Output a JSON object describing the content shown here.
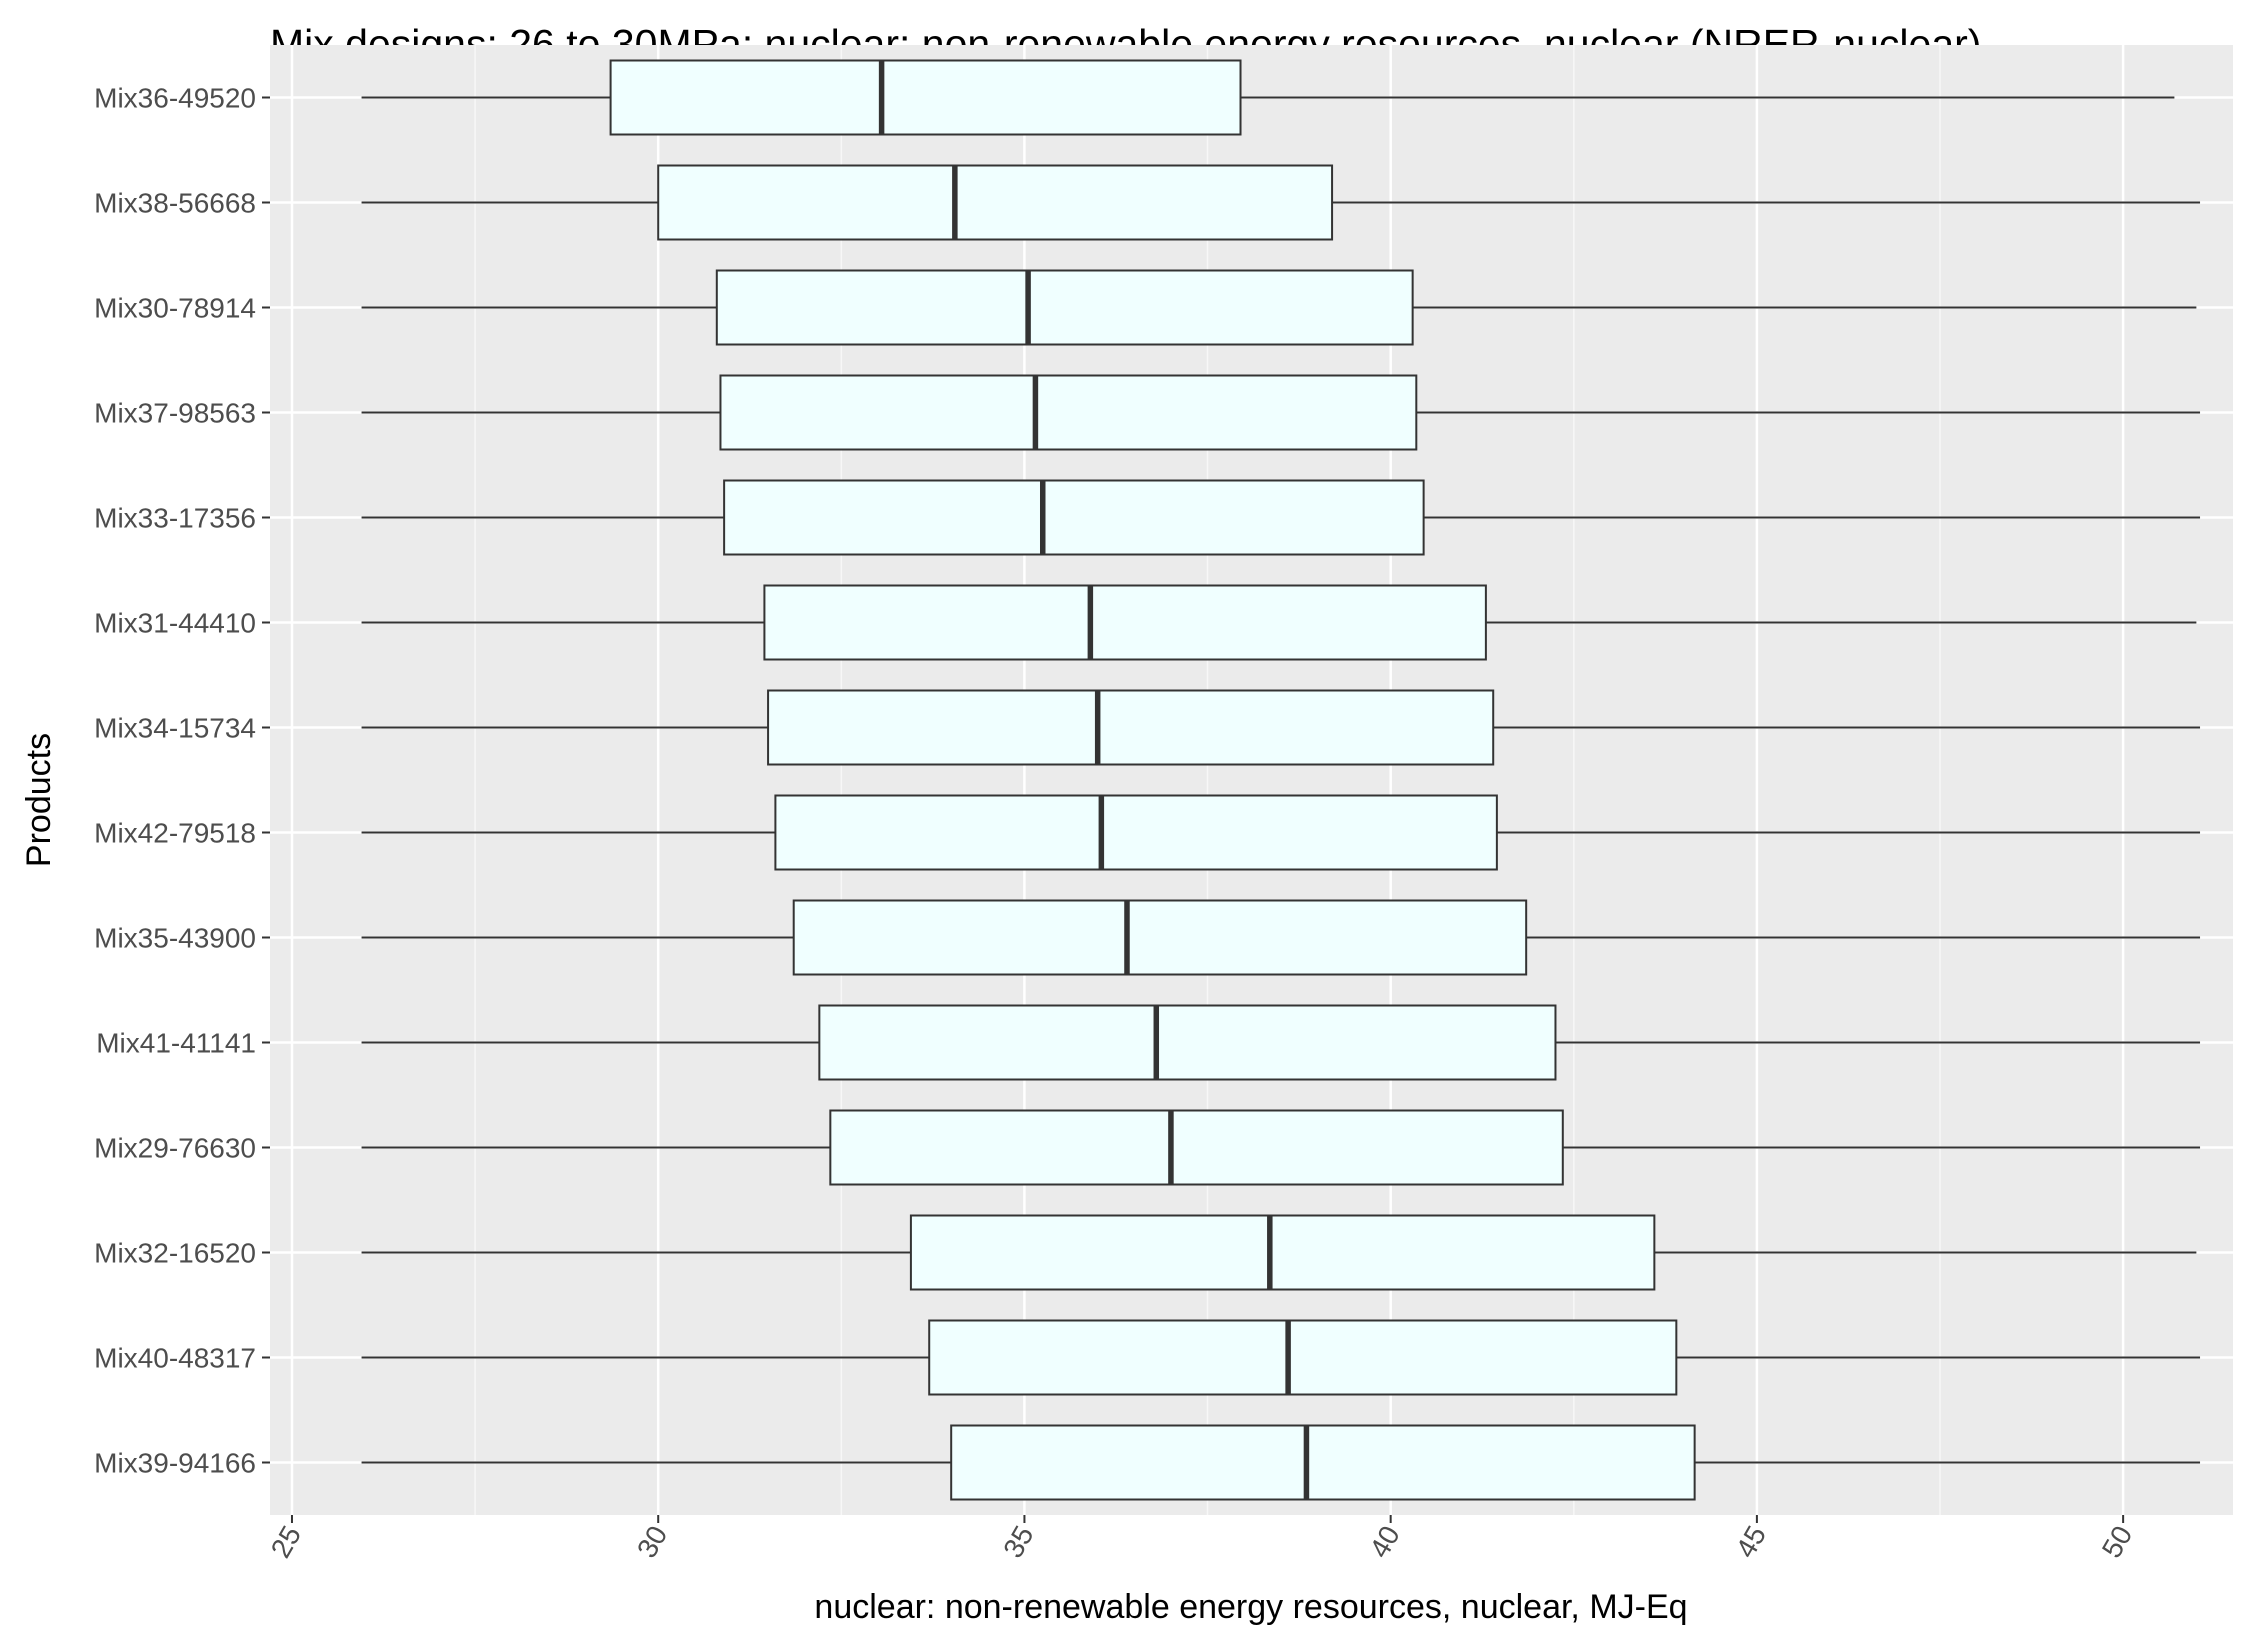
{
  "chart_data": {
    "type": "boxplot",
    "orientation": "horizontal",
    "title": "Mix designs: 26 to 30MPa; nuclear: non-renewable energy resources, nuclear (NRER-nuclear)",
    "xlabel": "nuclear: non-renewable energy resources, nuclear, MJ-Eq",
    "ylabel": "Products",
    "xlim": [
      24.7,
      51.5
    ],
    "x_ticks": [
      25,
      30,
      35,
      40,
      45,
      50
    ],
    "grid": true,
    "box_fill": "#f0ffff",
    "panel_background": "#ebebeb",
    "categories": [
      "Mix36-49520",
      "Mix38-56668",
      "Mix30-78914",
      "Mix37-98563",
      "Mix33-17356",
      "Mix31-44410",
      "Mix34-15734",
      "Mix42-79518",
      "Mix35-43900",
      "Mix41-41141",
      "Mix29-76630",
      "Mix32-16520",
      "Mix40-48317",
      "Mix39-94166"
    ],
    "boxes": [
      {
        "min": 25.95,
        "q1": 29.35,
        "median": 33.05,
        "q3": 37.95,
        "max": 50.7
      },
      {
        "min": 25.95,
        "q1": 30.0,
        "median": 34.05,
        "q3": 39.2,
        "max": 51.05
      },
      {
        "min": 25.95,
        "q1": 30.8,
        "median": 35.05,
        "q3": 40.3,
        "max": 51.0
      },
      {
        "min": 25.95,
        "q1": 30.85,
        "median": 35.15,
        "q3": 40.35,
        "max": 51.05
      },
      {
        "min": 25.95,
        "q1": 30.9,
        "median": 35.25,
        "q3": 40.45,
        "max": 51.05
      },
      {
        "min": 25.95,
        "q1": 31.45,
        "median": 35.9,
        "q3": 41.3,
        "max": 51.0
      },
      {
        "min": 25.95,
        "q1": 31.5,
        "median": 36.0,
        "q3": 41.4,
        "max": 51.05
      },
      {
        "min": 25.95,
        "q1": 31.6,
        "median": 36.05,
        "q3": 41.45,
        "max": 51.05
      },
      {
        "min": 25.95,
        "q1": 31.85,
        "median": 36.4,
        "q3": 41.85,
        "max": 51.05
      },
      {
        "min": 25.95,
        "q1": 32.2,
        "median": 36.8,
        "q3": 42.25,
        "max": 51.05
      },
      {
        "min": 25.95,
        "q1": 32.35,
        "median": 37.0,
        "q3": 42.35,
        "max": 51.05
      },
      {
        "min": 25.95,
        "q1": 33.45,
        "median": 38.35,
        "q3": 43.6,
        "max": 51.0
      },
      {
        "min": 25.95,
        "q1": 33.7,
        "median": 38.6,
        "q3": 43.9,
        "max": 51.05
      },
      {
        "min": 25.95,
        "q1": 34.0,
        "median": 38.85,
        "q3": 44.15,
        "max": 51.05
      }
    ]
  }
}
